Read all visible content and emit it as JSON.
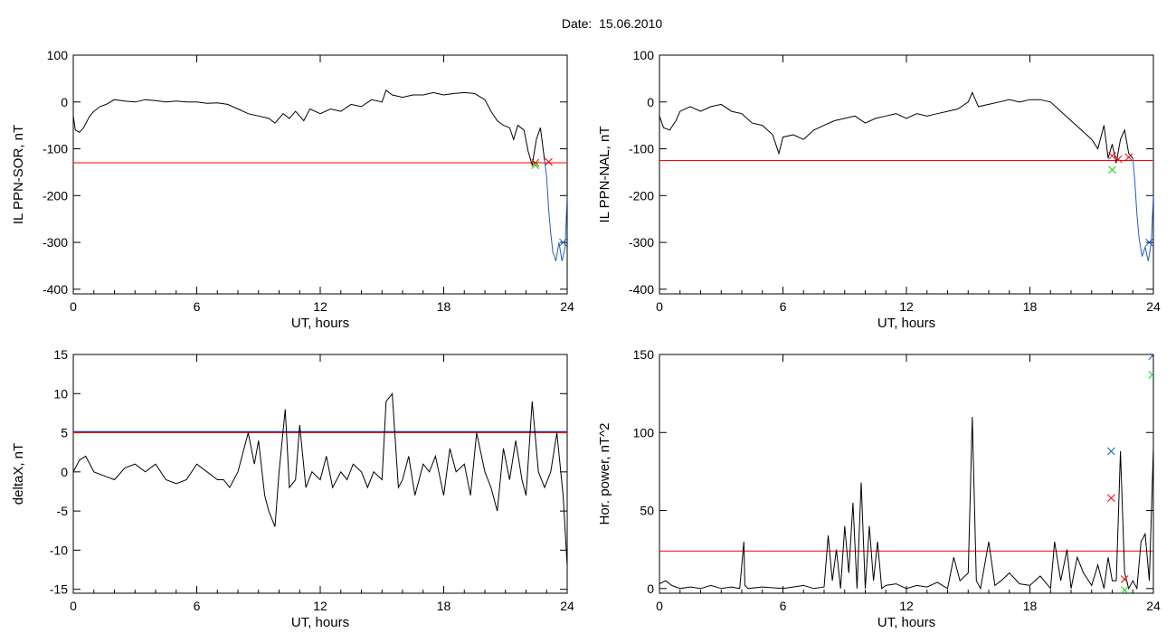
{
  "title": "Date:  15.06.2010",
  "chart_data": [
    {
      "type": "line",
      "ylabel": "IL PPN-SOR, nT",
      "xlabel": "UT, hours",
      "xlim": [
        0,
        24
      ],
      "ylim": [
        -410,
        100
      ],
      "xticks": [
        "0",
        "6",
        "12",
        "18",
        "24"
      ],
      "yticks": [
        "100",
        "0",
        "-100",
        "-200",
        "-300",
        "-400"
      ],
      "threshold": -130,
      "series": [
        {
          "color": "#000000",
          "x": [
            0,
            0.1,
            0.3,
            0.5,
            0.8,
            1.0,
            1.3,
            1.6,
            2.0,
            2.5,
            3.0,
            3.5,
            4.0,
            4.5,
            5.0,
            5.5,
            6.0,
            6.5,
            7.0,
            7.5,
            8.0,
            8.5,
            9.0,
            9.5,
            9.8,
            10.2,
            10.5,
            10.8,
            11.2,
            11.5,
            12.0,
            12.5,
            13.0,
            13.5,
            14.0,
            14.5,
            15.0,
            15.2,
            15.5,
            16.0,
            16.5,
            17.0,
            17.5,
            18.0,
            18.5,
            19.0,
            19.5,
            20.0,
            20.3,
            20.6,
            20.9,
            21.2,
            21.4,
            21.6,
            21.9,
            22.1,
            22.3,
            22.5,
            22.7,
            22.9
          ],
          "y": [
            -30,
            -60,
            -65,
            -55,
            -30,
            -20,
            -10,
            -5,
            5,
            2,
            0,
            5,
            3,
            0,
            2,
            0,
            0,
            -3,
            -2,
            -5,
            -15,
            -25,
            -30,
            -35,
            -45,
            -25,
            -35,
            -20,
            -40,
            -15,
            -25,
            -15,
            -20,
            -5,
            -10,
            5,
            0,
            25,
            15,
            10,
            15,
            15,
            20,
            15,
            18,
            20,
            18,
            5,
            -20,
            -40,
            -50,
            -55,
            -80,
            -50,
            -60,
            -105,
            -135,
            -80,
            -55,
            -125
          ]
        },
        {
          "color": "#1f5fbf",
          "x": [
            22.9,
            23.0,
            23.1,
            23.2,
            23.3,
            23.45,
            23.6,
            23.75,
            23.9,
            24.0
          ],
          "y": [
            -125,
            -160,
            -230,
            -280,
            -320,
            -340,
            -300,
            -340,
            -310,
            -200
          ]
        }
      ],
      "markers": [
        {
          "x": 22.45,
          "y": -130,
          "color": "#ff0000"
        },
        {
          "x": 22.45,
          "y": -135,
          "color": "#00cc00"
        },
        {
          "x": 23.1,
          "y": -128,
          "color": "#ff0000"
        },
        {
          "x": 23.8,
          "y": -300,
          "color": "#1f5fbf"
        }
      ]
    },
    {
      "type": "line",
      "ylabel": "IL PPN-NAL, nT",
      "xlabel": "UT, hours",
      "xlim": [
        0,
        24
      ],
      "ylim": [
        -410,
        100
      ],
      "xticks": [
        "0",
        "6",
        "12",
        "18",
        "24"
      ],
      "yticks": [
        "100",
        "0",
        "-100",
        "-200",
        "-300",
        "-400"
      ],
      "threshold": -125,
      "series": [
        {
          "color": "#000000",
          "x": [
            0,
            0.2,
            0.5,
            0.8,
            1.0,
            1.5,
            2.0,
            2.5,
            3.0,
            3.5,
            4.0,
            4.5,
            5.0,
            5.5,
            5.8,
            6.0,
            6.5,
            7.0,
            7.5,
            8.0,
            8.5,
            9.0,
            9.5,
            10.0,
            10.5,
            11.0,
            11.5,
            12.0,
            12.5,
            13.0,
            13.5,
            14.0,
            14.5,
            15.0,
            15.2,
            15.5,
            16.0,
            16.5,
            17.0,
            17.5,
            18.0,
            18.5,
            19.0,
            19.5,
            20.0,
            20.5,
            21.0,
            21.3,
            21.6,
            21.8,
            22.0,
            22.2,
            22.4,
            22.6,
            22.8,
            23.0
          ],
          "y": [
            -30,
            -55,
            -60,
            -40,
            -20,
            -10,
            -20,
            -10,
            -5,
            -20,
            -25,
            -45,
            -50,
            -70,
            -110,
            -75,
            -70,
            -80,
            -60,
            -50,
            -40,
            -35,
            -30,
            -45,
            -35,
            -30,
            -25,
            -35,
            -25,
            -30,
            -25,
            -20,
            -15,
            0,
            20,
            -10,
            -5,
            0,
            5,
            0,
            5,
            5,
            0,
            -20,
            -40,
            -60,
            -80,
            -100,
            -50,
            -120,
            -90,
            -130,
            -80,
            -60,
            -110,
            -120
          ]
        },
        {
          "color": "#1f5fbf",
          "x": [
            23.0,
            23.1,
            23.2,
            23.3,
            23.45,
            23.6,
            23.75,
            23.9,
            24.0
          ],
          "y": [
            -120,
            -170,
            -240,
            -290,
            -330,
            -310,
            -340,
            -300,
            -200
          ]
        }
      ],
      "markers": [
        {
          "x": 22.0,
          "y": -115,
          "color": "#ff0000"
        },
        {
          "x": 22.0,
          "y": -145,
          "color": "#00cc00"
        },
        {
          "x": 22.3,
          "y": -122,
          "color": "#ff0000"
        },
        {
          "x": 22.8,
          "y": -118,
          "color": "#ff0000"
        },
        {
          "x": 23.8,
          "y": -300,
          "color": "#1f5fbf"
        }
      ]
    },
    {
      "type": "line",
      "ylabel": "deltaX, nT",
      "xlabel": "UT, hours",
      "xlim": [
        0,
        24
      ],
      "ylim": [
        -15.5,
        15
      ],
      "xticks": [
        "0",
        "6",
        "12",
        "18",
        "24"
      ],
      "yticks": [
        "15",
        "10",
        "5",
        "0",
        "-5",
        "-10",
        "-15"
      ],
      "threshold": 5,
      "series": [
        {
          "color": "#000000",
          "x": [
            0,
            0.3,
            0.6,
            1.0,
            1.5,
            2.0,
            2.5,
            3.0,
            3.5,
            4.0,
            4.5,
            5.0,
            5.5,
            6.0,
            6.5,
            7.0,
            7.3,
            7.6,
            8.0,
            8.3,
            8.5,
            8.8,
            9.0,
            9.3,
            9.5,
            9.8,
            10.0,
            10.3,
            10.5,
            10.8,
            11.0,
            11.3,
            11.6,
            12.0,
            12.3,
            12.6,
            13.0,
            13.3,
            13.6,
            14.0,
            14.3,
            14.6,
            15.0,
            15.2,
            15.5,
            15.8,
            16.0,
            16.3,
            16.6,
            17.0,
            17.3,
            17.6,
            18.0,
            18.3,
            18.6,
            19.0,
            19.3,
            19.6,
            20.0,
            20.3,
            20.6,
            20.9,
            21.2,
            21.5,
            21.8,
            22.0,
            22.3,
            22.6,
            22.9,
            23.2,
            23.5,
            23.8,
            24.0
          ],
          "y": [
            0,
            1.5,
            2,
            0,
            -0.5,
            -1,
            0.5,
            1,
            0,
            1,
            -1,
            -1.5,
            -1,
            1,
            0,
            -1,
            -1,
            -2,
            0,
            3,
            5,
            1,
            4,
            -3,
            -5,
            -7,
            0,
            8,
            -2,
            -1,
            6,
            -2,
            0,
            -1,
            2,
            -2,
            0,
            -1,
            1,
            0,
            -2,
            0,
            -1,
            9,
            10,
            -2,
            -1,
            2,
            -3,
            1,
            0,
            2,
            -3,
            3,
            0,
            1,
            -3,
            5,
            0,
            -2,
            -5,
            3,
            -1,
            4,
            -1,
            -3,
            9,
            0,
            -2,
            0,
            5,
            -3,
            -12
          ]
        }
      ],
      "markers": []
    },
    {
      "type": "line",
      "ylabel": "Hor. power, nT^2",
      "xlabel": "UT, hours",
      "xlim": [
        0,
        24
      ],
      "ylim": [
        -3,
        150
      ],
      "xticks": [
        "0",
        "6",
        "12",
        "18",
        "24"
      ],
      "yticks": [
        "150",
        "100",
        "50",
        "0"
      ],
      "threshold": 24,
      "series": [
        {
          "color": "#000000",
          "x": [
            0,
            0.3,
            0.6,
            1.0,
            1.5,
            2.0,
            2.5,
            3.0,
            3.5,
            3.9,
            4.1,
            4.15,
            4.3,
            5.0,
            6.0,
            6.5,
            7.0,
            7.5,
            8.0,
            8.2,
            8.4,
            8.6,
            8.8,
            9.0,
            9.2,
            9.4,
            9.6,
            9.8,
            10.0,
            10.2,
            10.4,
            10.6,
            10.8,
            11.0,
            11.5,
            12.0,
            12.5,
            13.0,
            13.5,
            14.0,
            14.3,
            14.6,
            15.0,
            15.2,
            15.4,
            15.6,
            16.0,
            16.3,
            16.6,
            17.0,
            17.5,
            18.0,
            18.5,
            19.0,
            19.2,
            19.5,
            19.8,
            20.0,
            20.3,
            20.6,
            21.0,
            21.3,
            21.6,
            21.8,
            22.0,
            22.2,
            22.4,
            22.6,
            22.8,
            23.0,
            23.2,
            23.4,
            23.6,
            23.8,
            24.0
          ],
          "y": [
            3,
            5,
            2,
            0,
            1,
            0,
            2,
            0,
            1,
            0,
            30,
            2,
            0,
            1,
            0,
            1,
            2,
            0,
            1,
            34,
            5,
            25,
            0,
            40,
            10,
            55,
            0,
            68,
            0,
            40,
            5,
            30,
            0,
            2,
            3,
            0,
            2,
            1,
            4,
            0,
            20,
            5,
            10,
            110,
            5,
            0,
            30,
            2,
            5,
            10,
            3,
            2,
            8,
            0,
            30,
            5,
            25,
            0,
            20,
            10,
            2,
            15,
            0,
            20,
            5,
            5,
            88,
            10,
            0,
            5,
            0,
            30,
            35,
            5,
            90
          ]
        }
      ],
      "markers": [
        {
          "x": 21.95,
          "y": 88,
          "color": "#1f5fbf"
        },
        {
          "x": 21.95,
          "y": 58,
          "color": "#ff0000"
        },
        {
          "x": 22.6,
          "y": 6,
          "color": "#ff0000"
        },
        {
          "x": 22.6,
          "y": -1,
          "color": "#00cc00"
        },
        {
          "x": 23.95,
          "y": 149,
          "color": "#1f5fbf"
        },
        {
          "x": 23.95,
          "y": 137,
          "color": "#00cc00"
        }
      ]
    }
  ],
  "colors": {
    "axes": "#000000",
    "threshold": "#ff0000",
    "threshold_band": "#3030a0",
    "cross_marker": "#1f5fbf"
  }
}
